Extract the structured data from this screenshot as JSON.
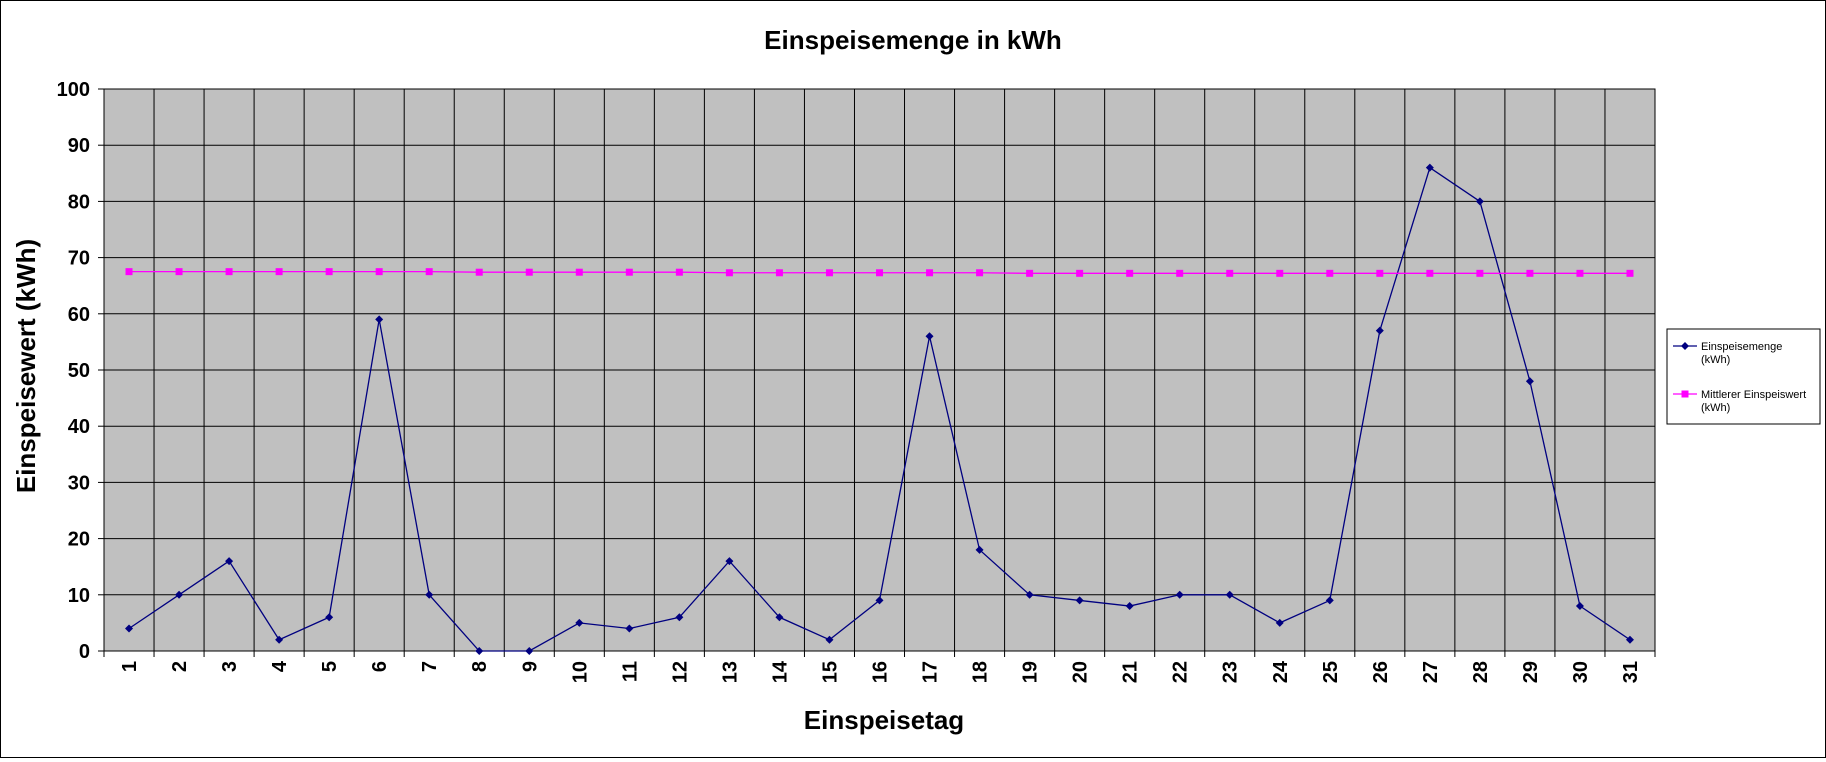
{
  "chart_data": {
    "type": "line",
    "title": "Einspeisemenge in kWh",
    "xlabel": "Einspeisetag",
    "ylabel": "Einspeisewert  (kWh)",
    "ylim": [
      0,
      100
    ],
    "ytick_step": 10,
    "yticks": [
      "0",
      "10",
      "20",
      "30",
      "40",
      "50",
      "60",
      "70",
      "80",
      "90",
      "100"
    ],
    "grid": true,
    "plot_background": "#c0c0c0",
    "legend_position": "right",
    "categories": [
      "1",
      "2",
      "3",
      "4",
      "5",
      "6",
      "7",
      "8",
      "9",
      "10",
      "11",
      "12",
      "13",
      "14",
      "15",
      "16",
      "17",
      "18",
      "19",
      "20",
      "21",
      "22",
      "23",
      "24",
      "25",
      "26",
      "27",
      "28",
      "29",
      "30",
      "31"
    ],
    "series": [
      {
        "name_lines": [
          "Einspeisemenge",
          "(kWh)"
        ],
        "color": "#000080",
        "marker": "diamond",
        "values": [
          4,
          10,
          16,
          2,
          6,
          59,
          10,
          0,
          0,
          5,
          4,
          6,
          16,
          6,
          2,
          9,
          56,
          18,
          10,
          9,
          8,
          10,
          10,
          5,
          9,
          57,
          86,
          80,
          48,
          8,
          2
        ]
      },
      {
        "name_lines": [
          "Mittlerer Einspeiswert",
          "(kWh)"
        ],
        "color": "#ff00ff",
        "marker": "square",
        "values": [
          67.5,
          67.5,
          67.5,
          67.5,
          67.5,
          67.5,
          67.5,
          67.4,
          67.4,
          67.4,
          67.4,
          67.4,
          67.3,
          67.3,
          67.3,
          67.3,
          67.3,
          67.3,
          67.2,
          67.2,
          67.2,
          67.2,
          67.2,
          67.2,
          67.2,
          67.2,
          67.2,
          67.2,
          67.2,
          67.2,
          67.2
        ]
      }
    ]
  }
}
